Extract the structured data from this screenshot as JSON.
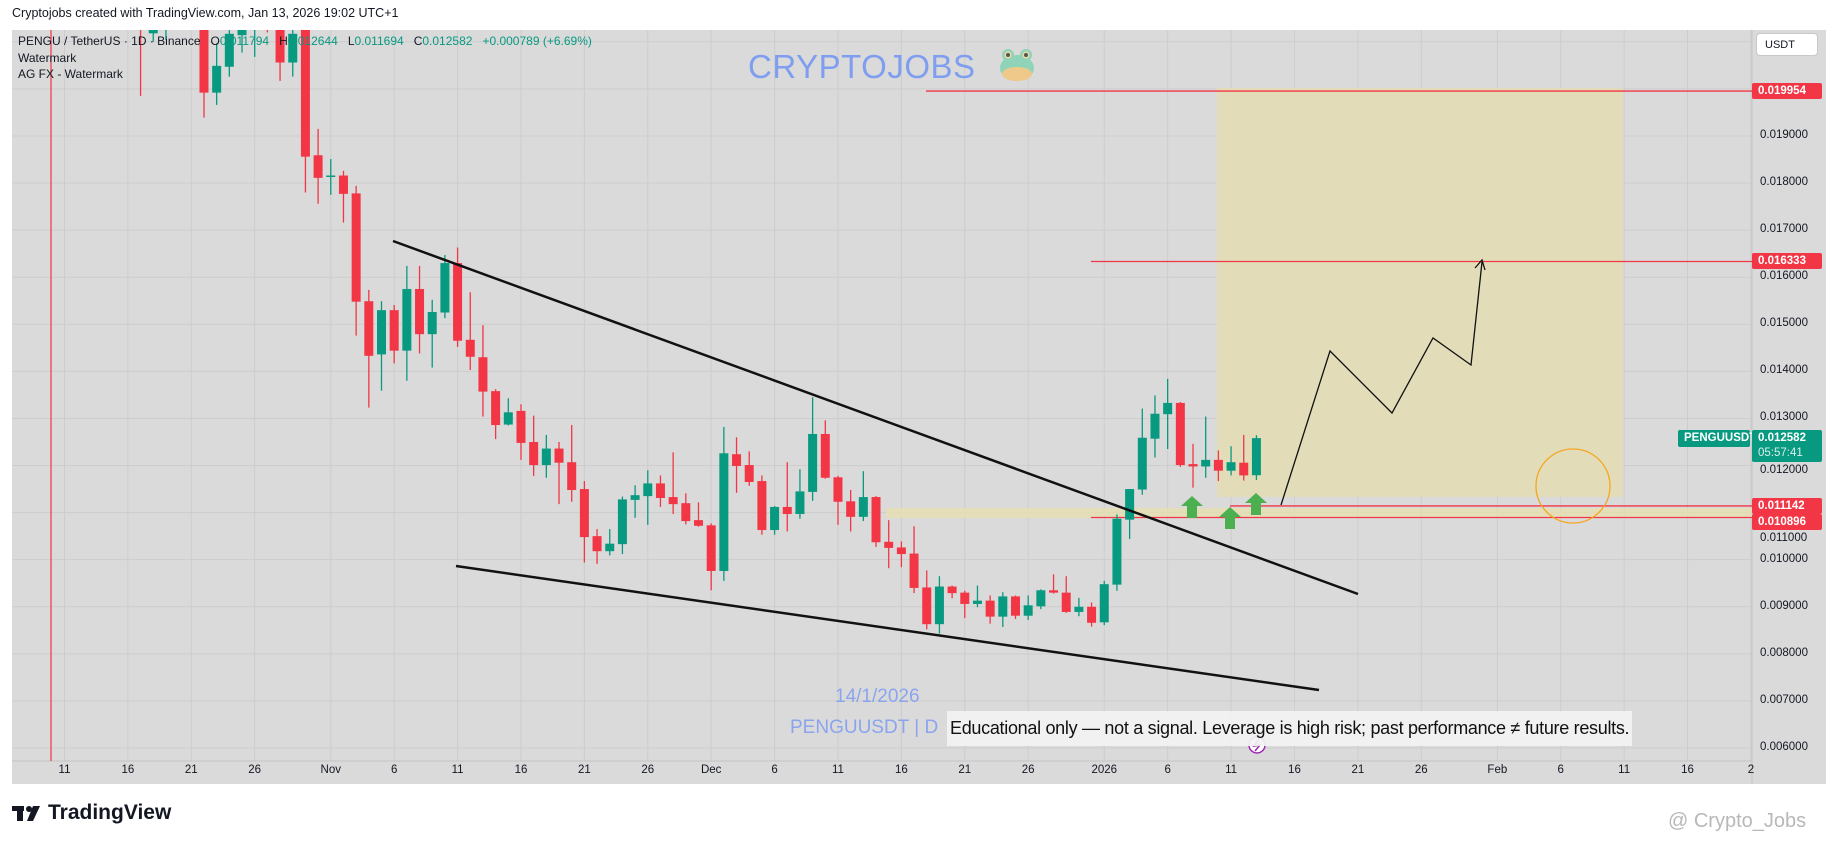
{
  "credit": "Cryptojobs created with TradingView.com, Jan 13, 2026 19:02 UTC+1",
  "legend": {
    "symbol": "PENGU / TetherUS · 1D · Binance",
    "o_label": "O",
    "o": "0.011794",
    "h_label": "H",
    "h": "0.012644",
    "l_label": "L",
    "l": "0.011694",
    "c_label": "C",
    "c": "0.012582",
    "change": "+0.000789 (+6.69%)",
    "line2": "Watermark",
    "line3": "AG FX - Watermark"
  },
  "watermark": {
    "text": "CRYPTOJOBS",
    "icon": "frog-emoji-icon",
    "date": "14/1/2026",
    "symbol": "PENGUUSDT | D"
  },
  "disclaimer": "Educational only — not a signal. Leverage is high risk; past performance ≠ future results.",
  "currency_button": "USDT",
  "colors": {
    "up": "#089981",
    "down": "#f23645",
    "background": "#dadada",
    "grid": "#cdcdcd",
    "target_zone": "#e2ddb8",
    "watermark": "#7f9ef0",
    "arrow": "#4caf50",
    "circle": "#f5a623"
  },
  "price_axis": [
    "0.019000",
    "0.018000",
    "0.017000",
    "0.016000",
    "0.015000",
    "0.014000",
    "0.013000",
    "0.012000",
    "0.011000",
    "0.010000",
    "0.009000",
    "0.008000",
    "0.007000",
    "0.006000"
  ],
  "time_axis": [
    "11",
    "16",
    "21",
    "26",
    "Nov",
    "6",
    "11",
    "16",
    "21",
    "26",
    "Dec",
    "6",
    "11",
    "16",
    "21",
    "26",
    "2026",
    "6",
    "11",
    "16",
    "21",
    "26",
    "Feb",
    "6",
    "11",
    "16",
    "2"
  ],
  "levels": [
    {
      "price": 0.019954,
      "label": "0.019954"
    },
    {
      "price": 0.016333,
      "label": "0.016333"
    },
    {
      "price": 0.011142,
      "label": "0.011142"
    },
    {
      "price": 0.010896,
      "label": "0.010896"
    }
  ],
  "last_price": {
    "symbol": "PENGUUSDT",
    "price": "0.012582",
    "countdown": "05:57:41"
  },
  "footer": {
    "brand": "TradingView",
    "author": "@ Crypto_Jobs"
  },
  "chart_data": {
    "type": "candlestick",
    "title": "PENGU / TetherUS · 1D · Binance",
    "ylabel": "USDT",
    "ylim": [
      0.0058,
      0.0213
    ],
    "start_date": "2025-10-17",
    "ohlc": [
      [
        0.0222,
        0.0225,
        0.01985,
        0.0215
      ],
      [
        0.02118,
        0.0221,
        0.021,
        0.0216
      ],
      [
        0.0216,
        0.0224,
        0.02104,
        0.0219
      ],
      [
        0.0219,
        0.023,
        0.0217,
        0.0225
      ],
      [
        0.0225,
        0.023,
        0.0216,
        0.0219
      ],
      [
        0.0219,
        0.0222,
        0.01939,
        0.01992
      ],
      [
        0.01992,
        0.02097,
        0.01966,
        0.02049
      ],
      [
        0.02047,
        0.0216,
        0.02026,
        0.02117
      ],
      [
        0.02114,
        0.0218,
        0.02077,
        0.0214
      ],
      [
        0.0218,
        0.0224,
        0.02068,
        0.022
      ],
      [
        0.0222,
        0.0225,
        0.0212,
        0.0219
      ],
      [
        0.0215,
        0.0219,
        0.02017,
        0.02056
      ],
      [
        0.02056,
        0.0216,
        0.02026,
        0.02117
      ],
      [
        0.0214,
        0.0216,
        0.0178,
        0.01856
      ],
      [
        0.01859,
        0.01915,
        0.01756,
        0.01811
      ],
      [
        0.01814,
        0.01851,
        0.01775,
        0.01816
      ],
      [
        0.01816,
        0.01826,
        0.01716,
        0.01777
      ],
      [
        0.01778,
        0.01794,
        0.01476,
        0.01548
      ],
      [
        0.01549,
        0.01573,
        0.01323,
        0.01433
      ],
      [
        0.01436,
        0.01549,
        0.01359,
        0.0153
      ],
      [
        0.0153,
        0.01541,
        0.01417,
        0.01444
      ],
      [
        0.01444,
        0.01624,
        0.0138,
        0.01575
      ],
      [
        0.01575,
        0.01624,
        0.01438,
        0.01479
      ],
      [
        0.01479,
        0.01552,
        0.01408,
        0.01526
      ],
      [
        0.01525,
        0.01647,
        0.01513,
        0.0163
      ],
      [
        0.0163,
        0.01663,
        0.01452,
        0.01465
      ],
      [
        0.01467,
        0.01568,
        0.01403,
        0.01431
      ],
      [
        0.0143,
        0.01498,
        0.01304,
        0.01357
      ],
      [
        0.01358,
        0.01362,
        0.01256,
        0.01286
      ],
      [
        0.01287,
        0.01343,
        0.01285,
        0.01313
      ],
      [
        0.01316,
        0.0133,
        0.01212,
        0.01248
      ],
      [
        0.0125,
        0.01306,
        0.01178,
        0.01201
      ],
      [
        0.01201,
        0.01265,
        0.01174,
        0.01236
      ],
      [
        0.01236,
        0.0125,
        0.01118,
        0.01206
      ],
      [
        0.01207,
        0.01286,
        0.01123,
        0.01148
      ],
      [
        0.0115,
        0.01167,
        0.00994,
        0.01048
      ],
      [
        0.0105,
        0.01065,
        0.00991,
        0.01018
      ],
      [
        0.01018,
        0.01065,
        0.01009,
        0.01034
      ],
      [
        0.01033,
        0.01134,
        0.01012,
        0.01128
      ],
      [
        0.01127,
        0.01158,
        0.01089,
        0.01137
      ],
      [
        0.01135,
        0.0119,
        0.01074,
        0.01162
      ],
      [
        0.01162,
        0.01179,
        0.01112,
        0.01131
      ],
      [
        0.01133,
        0.01228,
        0.01097,
        0.01118
      ],
      [
        0.0112,
        0.01141,
        0.01075,
        0.01082
      ],
      [
        0.01084,
        0.01122,
        0.0107,
        0.01072
      ],
      [
        0.01073,
        0.01077,
        0.00935,
        0.00976
      ],
      [
        0.00976,
        0.01282,
        0.00955,
        0.01226
      ],
      [
        0.01224,
        0.0126,
        0.01142,
        0.01199
      ],
      [
        0.01201,
        0.0123,
        0.01157,
        0.01165
      ],
      [
        0.01167,
        0.01179,
        0.01053,
        0.01063
      ],
      [
        0.01063,
        0.01114,
        0.01053,
        0.01112
      ],
      [
        0.01112,
        0.01207,
        0.0106,
        0.01097
      ],
      [
        0.01097,
        0.01192,
        0.01087,
        0.01145
      ],
      [
        0.01144,
        0.01345,
        0.01125,
        0.01267
      ],
      [
        0.01267,
        0.01296,
        0.01172,
        0.01174
      ],
      [
        0.01175,
        0.01178,
        0.01074,
        0.01123
      ],
      [
        0.01124,
        0.01148,
        0.0106,
        0.01091
      ],
      [
        0.01091,
        0.01188,
        0.01082,
        0.01133
      ],
      [
        0.01133,
        0.01135,
        0.01027,
        0.01037
      ],
      [
        0.01038,
        0.01084,
        0.00982,
        0.01025
      ],
      [
        0.01026,
        0.01039,
        0.00984,
        0.01012
      ],
      [
        0.01013,
        0.01071,
        0.00929,
        0.0094
      ],
      [
        0.00941,
        0.00977,
        0.00852,
        0.00863
      ],
      [
        0.00863,
        0.00965,
        0.00843,
        0.00943
      ],
      [
        0.00943,
        0.00945,
        0.00918,
        0.00929
      ],
      [
        0.0093,
        0.00934,
        0.00876,
        0.00906
      ],
      [
        0.00906,
        0.00945,
        0.00899,
        0.00913
      ],
      [
        0.00913,
        0.00924,
        0.00864,
        0.00879
      ],
      [
        0.00879,
        0.00931,
        0.00857,
        0.00922
      ],
      [
        0.00922,
        0.00924,
        0.00874,
        0.00881
      ],
      [
        0.00881,
        0.00924,
        0.00872,
        0.00903
      ],
      [
        0.00901,
        0.00937,
        0.00895,
        0.00935
      ],
      [
        0.00935,
        0.00969,
        0.00928,
        0.0093
      ],
      [
        0.0093,
        0.00965,
        0.00887,
        0.00889
      ],
      [
        0.00889,
        0.00919,
        0.0088,
        0.009
      ],
      [
        0.009,
        0.00909,
        0.00858,
        0.00866
      ],
      [
        0.00867,
        0.00955,
        0.00861,
        0.00948
      ],
      [
        0.00947,
        0.01096,
        0.00934,
        0.01087
      ],
      [
        0.01085,
        0.0115,
        0.01044,
        0.0115
      ],
      [
        0.01149,
        0.01321,
        0.01138,
        0.01259
      ],
      [
        0.01257,
        0.01349,
        0.01217,
        0.0131
      ],
      [
        0.01309,
        0.01384,
        0.01235,
        0.01333
      ],
      [
        0.01333,
        0.01335,
        0.01197,
        0.01201
      ],
      [
        0.01203,
        0.01246,
        0.01153,
        0.01198
      ],
      [
        0.01198,
        0.01304,
        0.01174,
        0.01212
      ],
      [
        0.01212,
        0.01232,
        0.01167,
        0.01189
      ],
      [
        0.01189,
        0.01241,
        0.01179,
        0.01207
      ],
      [
        0.01206,
        0.01265,
        0.01168,
        0.01179
      ],
      [
        0.011794,
        0.012644,
        0.011694,
        0.012582
      ]
    ]
  }
}
